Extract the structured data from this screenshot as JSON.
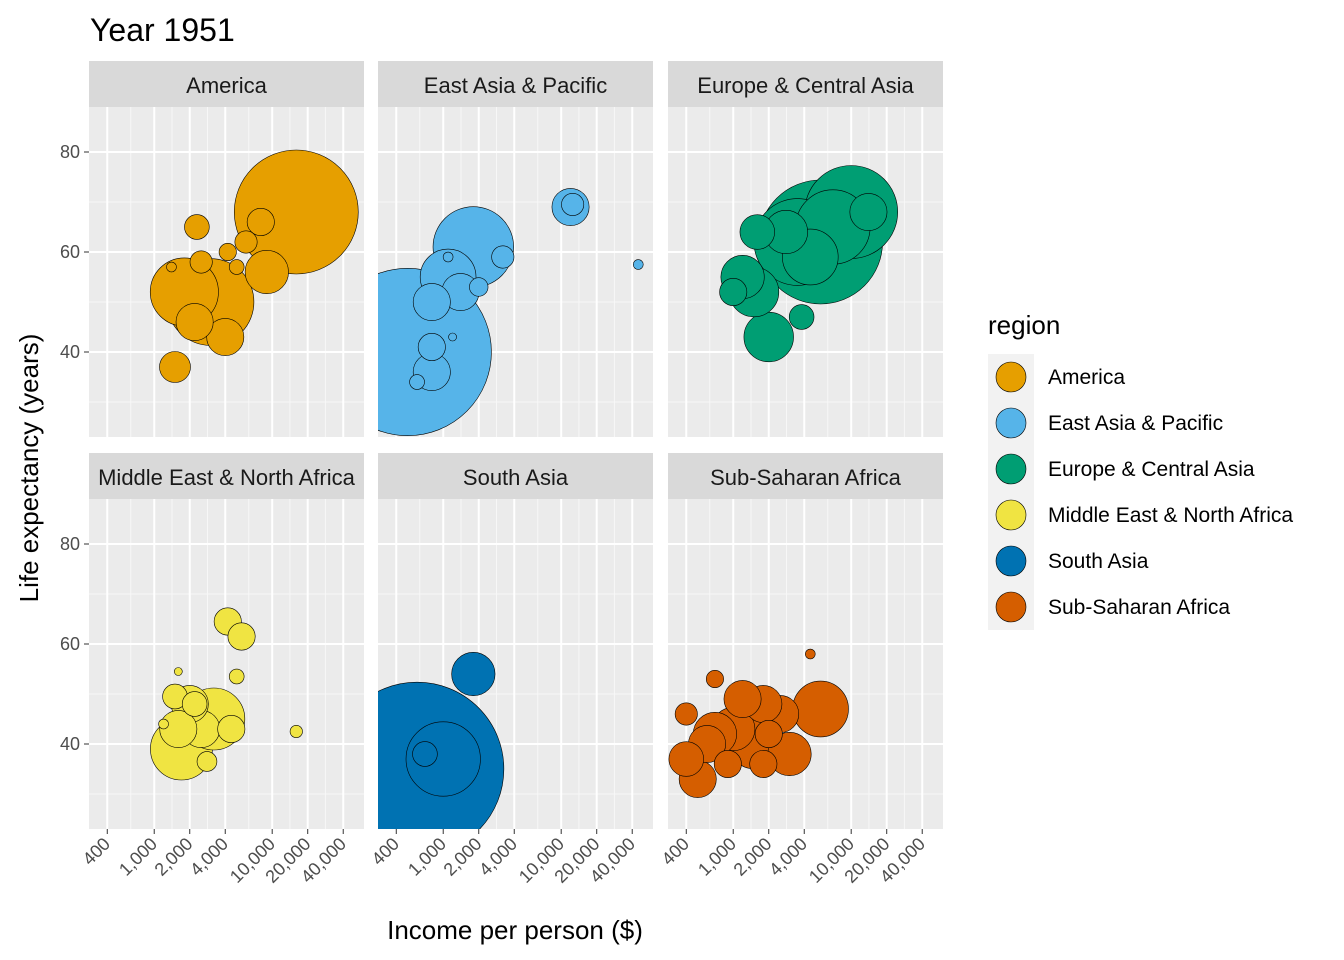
{
  "chart_data": {
    "type": "scatter",
    "title": "Year 1951",
    "xlabel": "Income per person ($)",
    "ylabel": "Life expectancy (years)",
    "x_scale": "log",
    "x_ticks": [
      400,
      1000,
      2000,
      4000,
      10000,
      20000,
      40000
    ],
    "x_tick_labels": [
      "400",
      "1,000",
      "2,000",
      "4,000",
      "10,000",
      "20,000",
      "40,000"
    ],
    "xlim": [
      280,
      60000
    ],
    "y_ticks": [
      40,
      60,
      80
    ],
    "y_tick_labels": [
      "40",
      "60",
      "80"
    ],
    "ylim": [
      23,
      89
    ],
    "grid": true,
    "legend": {
      "title": "region",
      "placement": "right",
      "entries": [
        {
          "label": "America",
          "color": "#E69F00"
        },
        {
          "label": "East Asia & Pacific",
          "color": "#56B4E9"
        },
        {
          "label": "Europe & Central Asia",
          "color": "#009E73"
        },
        {
          "label": "Middle East & North Africa",
          "color": "#F0E442"
        },
        {
          "label": "South Asia",
          "color": "#0072B2"
        },
        {
          "label": "Sub-Saharan Africa",
          "color": "#D55E00"
        }
      ]
    },
    "facets": [
      {
        "label": "America",
        "color": "#E69F00",
        "points": [
          {
            "x": 16000,
            "y": 68,
            "size": 1.0
          },
          {
            "x": 3000,
            "y": 50,
            "size": 0.7
          },
          {
            "x": 1800,
            "y": 52,
            "size": 0.55
          },
          {
            "x": 9000,
            "y": 56,
            "size": 0.35
          },
          {
            "x": 4000,
            "y": 43,
            "size": 0.3
          },
          {
            "x": 2200,
            "y": 46,
            "size": 0.3
          },
          {
            "x": 1500,
            "y": 37,
            "size": 0.25
          },
          {
            "x": 2300,
            "y": 65,
            "size": 0.2
          },
          {
            "x": 8000,
            "y": 66,
            "size": 0.22
          },
          {
            "x": 6000,
            "y": 62,
            "size": 0.18
          },
          {
            "x": 2500,
            "y": 58,
            "size": 0.18
          },
          {
            "x": 4200,
            "y": 60,
            "size": 0.14
          },
          {
            "x": 5000,
            "y": 57,
            "size": 0.12
          },
          {
            "x": 1400,
            "y": 57,
            "size": 0.08
          }
        ]
      },
      {
        "label": "East Asia & Pacific",
        "color": "#56B4E9",
        "points": [
          {
            "x": 500,
            "y": 40,
            "size": 1.35
          },
          {
            "x": 1800,
            "y": 61,
            "size": 0.65
          },
          {
            "x": 1100,
            "y": 55,
            "size": 0.45
          },
          {
            "x": 1400,
            "y": 52,
            "size": 0.3
          },
          {
            "x": 800,
            "y": 50,
            "size": 0.3
          },
          {
            "x": 12000,
            "y": 69,
            "size": 0.3
          },
          {
            "x": 12500,
            "y": 69.5,
            "size": 0.18
          },
          {
            "x": 3200,
            "y": 59,
            "size": 0.18
          },
          {
            "x": 800,
            "y": 41,
            "size": 0.22
          },
          {
            "x": 800,
            "y": 36,
            "size": 0.3
          },
          {
            "x": 600,
            "y": 34,
            "size": 0.12
          },
          {
            "x": 2000,
            "y": 53,
            "size": 0.15
          },
          {
            "x": 45000,
            "y": 57.5,
            "size": 0.08
          },
          {
            "x": 1100,
            "y": 59,
            "size": 0.08
          },
          {
            "x": 1200,
            "y": 43,
            "size": 0.05
          }
        ]
      },
      {
        "label": "Europe & Central Asia",
        "color": "#009E73",
        "points": [
          {
            "x": 5500,
            "y": 62,
            "size": 1.0
          },
          {
            "x": 3500,
            "y": 62,
            "size": 0.7
          },
          {
            "x": 10000,
            "y": 68,
            "size": 0.75
          },
          {
            "x": 7000,
            "y": 65,
            "size": 0.6
          },
          {
            "x": 2000,
            "y": 43,
            "size": 0.4
          },
          {
            "x": 1200,
            "y": 55,
            "size": 0.35
          },
          {
            "x": 1500,
            "y": 52,
            "size": 0.4
          },
          {
            "x": 4500,
            "y": 59,
            "size": 0.45
          },
          {
            "x": 2800,
            "y": 64,
            "size": 0.35
          },
          {
            "x": 14000,
            "y": 68,
            "size": 0.3
          },
          {
            "x": 1600,
            "y": 64,
            "size": 0.28
          },
          {
            "x": 3800,
            "y": 47,
            "size": 0.2
          },
          {
            "x": 1000,
            "y": 52,
            "size": 0.22
          }
        ]
      },
      {
        "label": "Middle East & North Africa",
        "color": "#F0E442",
        "points": [
          {
            "x": 1700,
            "y": 39,
            "size": 0.5
          },
          {
            "x": 3200,
            "y": 45,
            "size": 0.5
          },
          {
            "x": 2500,
            "y": 43,
            "size": 0.3
          },
          {
            "x": 2000,
            "y": 48,
            "size": 0.3
          },
          {
            "x": 1600,
            "y": 43,
            "size": 0.3
          },
          {
            "x": 4500,
            "y": 43,
            "size": 0.22
          },
          {
            "x": 1500,
            "y": 49.5,
            "size": 0.2
          },
          {
            "x": 2200,
            "y": 48,
            "size": 0.2
          },
          {
            "x": 4200,
            "y": 64.5,
            "size": 0.22
          },
          {
            "x": 5500,
            "y": 61.5,
            "size": 0.22
          },
          {
            "x": 2800,
            "y": 36.5,
            "size": 0.16
          },
          {
            "x": 5000,
            "y": 53.5,
            "size": 0.12
          },
          {
            "x": 16000,
            "y": 42.5,
            "size": 0.1
          },
          {
            "x": 1200,
            "y": 44,
            "size": 0.08
          },
          {
            "x": 1600,
            "y": 54.5,
            "size": 0.05
          }
        ]
      },
      {
        "label": "South Asia",
        "color": "#0072B2",
        "points": [
          {
            "x": 600,
            "y": 35,
            "size": 1.4
          },
          {
            "x": 1000,
            "y": 37,
            "size": 0.6
          },
          {
            "x": 1800,
            "y": 54,
            "size": 0.35
          },
          {
            "x": 700,
            "y": 38,
            "size": 0.2
          }
        ]
      },
      {
        "label": "Sub-Saharan Africa",
        "color": "#D55E00",
        "points": [
          {
            "x": 5500,
            "y": 47,
            "size": 0.45
          },
          {
            "x": 3000,
            "y": 38,
            "size": 0.35
          },
          {
            "x": 1500,
            "y": 40,
            "size": 0.4
          },
          {
            "x": 1000,
            "y": 43,
            "size": 0.35
          },
          {
            "x": 700,
            "y": 42,
            "size": 0.35
          },
          {
            "x": 2500,
            "y": 46,
            "size": 0.3
          },
          {
            "x": 1800,
            "y": 48,
            "size": 0.3
          },
          {
            "x": 1200,
            "y": 49,
            "size": 0.3
          },
          {
            "x": 500,
            "y": 33,
            "size": 0.3
          },
          {
            "x": 600,
            "y": 40,
            "size": 0.3
          },
          {
            "x": 400,
            "y": 37,
            "size": 0.28
          },
          {
            "x": 900,
            "y": 36,
            "size": 0.22
          },
          {
            "x": 1800,
            "y": 36,
            "size": 0.22
          },
          {
            "x": 2000,
            "y": 42,
            "size": 0.22
          },
          {
            "x": 400,
            "y": 46,
            "size": 0.18
          },
          {
            "x": 700,
            "y": 53,
            "size": 0.14
          },
          {
            "x": 4500,
            "y": 58,
            "size": 0.08
          }
        ]
      }
    ]
  }
}
